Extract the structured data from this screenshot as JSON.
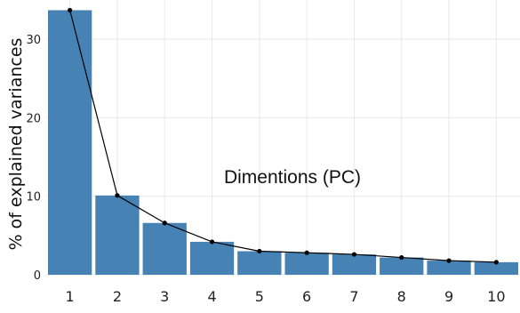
{
  "chart_data": {
    "type": "bar",
    "ylabel": "% of explained variances",
    "annotation": "Dimentions (PC)",
    "categories": [
      "1",
      "2",
      "3",
      "4",
      "5",
      "6",
      "7",
      "8",
      "9",
      "10"
    ],
    "values": [
      33.7,
      10.1,
      6.6,
      4.2,
      3.0,
      2.8,
      2.6,
      2.2,
      1.8,
      1.6
    ],
    "line_values": [
      33.7,
      10.1,
      6.6,
      4.2,
      3.0,
      2.8,
      2.6,
      2.2,
      1.8,
      1.6
    ],
    "yticks": [
      0,
      10,
      20,
      30
    ],
    "ylim": [
      0,
      35
    ],
    "grid": true,
    "colors": {
      "bar": "#4682b4",
      "line": "#000000",
      "grid": "#e8e8e8"
    }
  }
}
